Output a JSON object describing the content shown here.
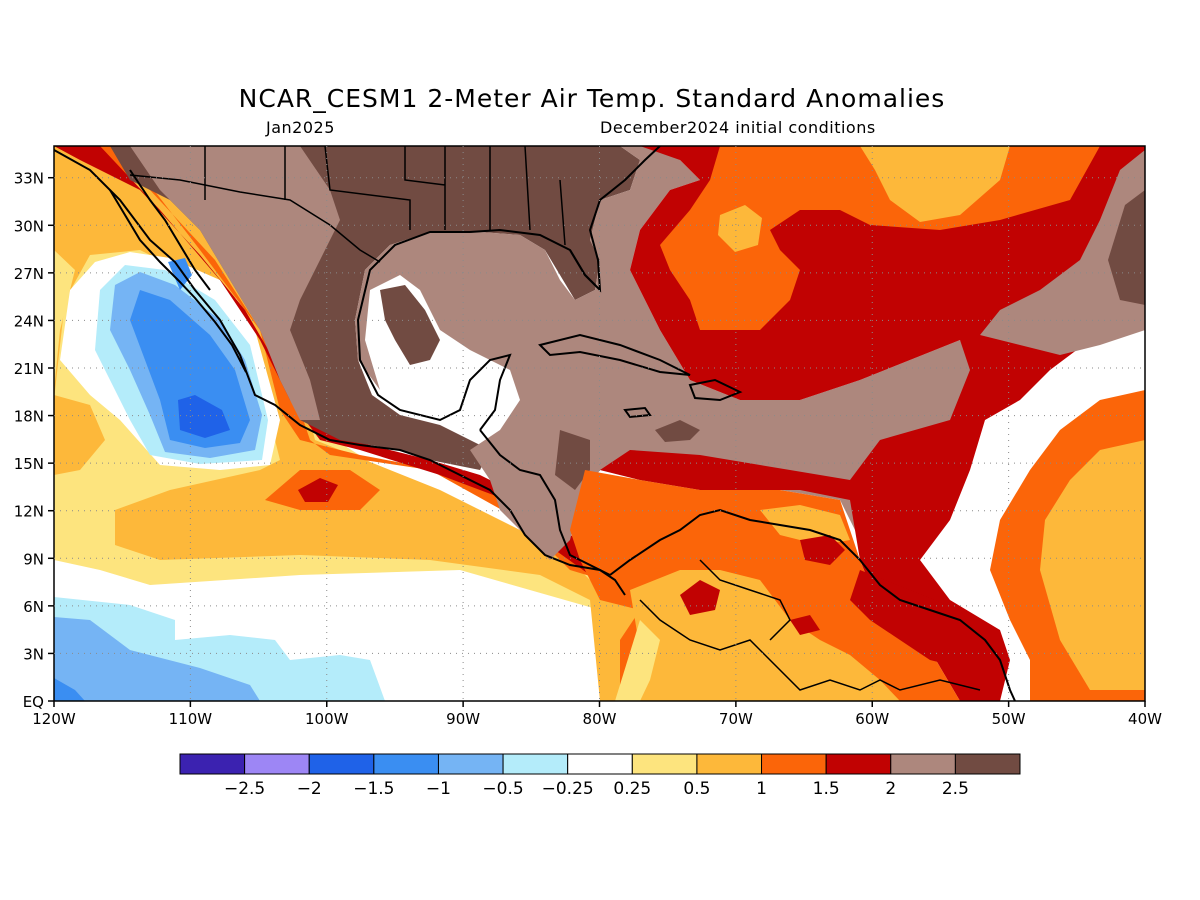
{
  "title": "NCAR_CESM1 2-Meter Air Temp. Standard Anomalies",
  "subtitle_left": "Jan2025",
  "subtitle_right": "December2024 initial conditions",
  "map": {
    "lon_range": [
      -120,
      -40
    ],
    "lat_range": [
      0,
      35
    ],
    "lat_ticks": [
      {
        "value": 33,
        "label": "33N"
      },
      {
        "value": 30,
        "label": "30N"
      },
      {
        "value": 27,
        "label": "27N"
      },
      {
        "value": 24,
        "label": "24N"
      },
      {
        "value": 21,
        "label": "21N"
      },
      {
        "value": 18,
        "label": "18N"
      },
      {
        "value": 15,
        "label": "15N"
      },
      {
        "value": 12,
        "label": "12N"
      },
      {
        "value": 9,
        "label": "9N"
      },
      {
        "value": 6,
        "label": "6N"
      },
      {
        "value": 3,
        "label": "3N"
      },
      {
        "value": 0,
        "label": "EQ"
      }
    ],
    "lon_ticks": [
      {
        "value": -120,
        "label": "120W"
      },
      {
        "value": -110,
        "label": "110W"
      },
      {
        "value": -100,
        "label": "100W"
      },
      {
        "value": -90,
        "label": "90W"
      },
      {
        "value": -80,
        "label": "80W"
      },
      {
        "value": -70,
        "label": "70W"
      },
      {
        "value": -60,
        "label": "60W"
      },
      {
        "value": -50,
        "label": "50W"
      },
      {
        "value": -40,
        "label": "40W"
      }
    ],
    "grid": "dotted"
  },
  "colorbar": {
    "colors": [
      "#3b22b0",
      "#9d86f5",
      "#1f62e8",
      "#3a8ef2",
      "#75b4f4",
      "#b4ecfa",
      "#ffffff",
      "#fde47e",
      "#fdb83a",
      "#fb6509",
      "#c10202",
      "#ad877d",
      "#714b42"
    ],
    "labels": [
      "−2.5",
      "−2",
      "−1.5",
      "−1",
      "−0.5",
      "−0.25",
      "0.25",
      "0.5",
      "1",
      "1.5",
      "2",
      "2.5"
    ]
  }
}
